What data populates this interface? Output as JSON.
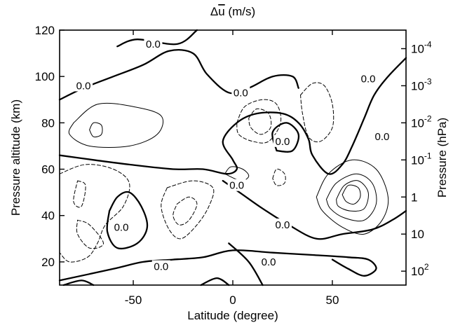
{
  "chart_data": {
    "type": "contour",
    "title": "Δu̅ (m/s)",
    "xlabel": "Latitude (degree)",
    "ylabel": "Pressure altitude (km)",
    "y2label": "Pressure (hPa)",
    "xlim": [
      -87,
      87
    ],
    "ylim": [
      10,
      120
    ],
    "xticks": [
      -50,
      0,
      50
    ],
    "yticks": [
      20,
      40,
      60,
      80,
      100,
      120
    ],
    "y2ticks": [
      {
        "alt": 16,
        "base": "10",
        "exp": "2"
      },
      {
        "alt": 32,
        "base": "10",
        "exp": ""
      },
      {
        "alt": 48,
        "base": "1",
        "exp": ""
      },
      {
        "alt": 64,
        "base": "10",
        "exp": "-1"
      },
      {
        "alt": 80,
        "base": "10",
        "exp": "-2"
      },
      {
        "alt": 96,
        "base": "10",
        "exp": "-3"
      },
      {
        "alt": 112,
        "base": "10",
        "exp": "-4"
      }
    ],
    "zero_label": "0.0",
    "legend": "none",
    "contour_styles": {
      "zero": "thick solid",
      "positive": "thin solid",
      "negative": "dashed"
    },
    "contours": [
      {
        "kind": "zero",
        "points": [
          [
            -87,
            90
          ],
          [
            -75,
            95
          ],
          [
            -60,
            100
          ],
          [
            -45,
            105
          ],
          [
            -32,
            111
          ],
          [
            -20,
            110
          ],
          [
            -13,
            101
          ],
          [
            -2,
            93
          ],
          [
            8,
            95
          ],
          [
            20,
            100
          ],
          [
            30,
            100
          ],
          [
            33,
            95
          ]
        ]
      },
      {
        "kind": "zero",
        "points": [
          [
            -87,
            66
          ],
          [
            -70,
            64
          ],
          [
            -52,
            62
          ],
          [
            -30,
            60
          ],
          [
            -15,
            60
          ],
          [
            -3,
            58
          ],
          [
            2,
            60
          ],
          [
            0,
            64
          ],
          [
            -5,
            72
          ],
          [
            2,
            80
          ],
          [
            12,
            84
          ],
          [
            25,
            84
          ],
          [
            33,
            80
          ],
          [
            38,
            73
          ],
          [
            40,
            66
          ],
          [
            48,
            58
          ],
          [
            55,
            62
          ],
          [
            60,
            70
          ],
          [
            66,
            82
          ],
          [
            71,
            92
          ],
          [
            78,
            100
          ],
          [
            87,
            108
          ]
        ]
      },
      {
        "kind": "zero",
        "points": [
          [
            -58,
            113
          ],
          [
            -48,
            116
          ],
          [
            -28,
            114
          ],
          [
            -18,
            120
          ]
        ]
      },
      {
        "kind": "zero",
        "points": [
          [
            -87,
            12
          ],
          [
            -60,
            17
          ],
          [
            -45,
            20
          ],
          [
            -30,
            21
          ],
          [
            -15,
            22
          ],
          [
            0,
            25
          ],
          [
            20,
            24
          ],
          [
            40,
            23
          ],
          [
            58,
            22
          ],
          [
            68,
            21
          ],
          [
            72,
            17
          ],
          [
            66,
            14
          ],
          [
            58,
            17
          ],
          [
            50,
            21
          ]
        ]
      },
      {
        "kind": "zero",
        "points": [
          [
            -62,
            42
          ],
          [
            -58,
            48
          ],
          [
            -52,
            50
          ],
          [
            -46,
            44
          ],
          [
            -43,
            35
          ],
          [
            -48,
            28
          ],
          [
            -58,
            26
          ],
          [
            -63,
            33
          ],
          [
            -62,
            42
          ]
        ]
      },
      {
        "kind": "zero",
        "points": [
          [
            -5,
            55
          ],
          [
            5,
            49
          ],
          [
            15,
            43
          ],
          [
            28,
            36
          ],
          [
            42,
            30
          ],
          [
            55,
            32
          ],
          [
            70,
            34
          ],
          [
            80,
            38
          ],
          [
            87,
            42
          ]
        ]
      },
      {
        "kind": "zero",
        "points": [
          [
            22,
            68
          ],
          [
            20,
            76
          ],
          [
            27,
            80
          ],
          [
            33,
            75
          ],
          [
            30,
            68
          ],
          [
            22,
            68
          ]
        ]
      },
      {
        "kind": "zero",
        "points": [
          [
            -85,
            10
          ],
          [
            -76,
            12
          ],
          [
            -70,
            10
          ]
        ]
      },
      {
        "kind": "zero",
        "points": [
          [
            -16,
            10
          ],
          [
            -8,
            13
          ],
          [
            -2,
            10
          ]
        ]
      },
      {
        "kind": "zero",
        "points": [
          [
            -2,
            28
          ],
          [
            8,
            20
          ],
          [
            15,
            10
          ]
        ]
      },
      {
        "kind": "positive",
        "points": [
          [
            -80,
            80
          ],
          [
            -68,
            88
          ],
          [
            -50,
            87
          ],
          [
            -36,
            83
          ],
          [
            -38,
            75
          ],
          [
            -52,
            70
          ],
          [
            -72,
            70
          ],
          [
            -82,
            75
          ],
          [
            -80,
            80
          ]
        ]
      },
      {
        "kind": "positive",
        "points": [
          [
            -72,
            77
          ],
          [
            -70,
            80
          ],
          [
            -66,
            79
          ],
          [
            -66,
            75
          ],
          [
            -70,
            74
          ],
          [
            -72,
            77
          ]
        ]
      },
      {
        "kind": "positive",
        "points": [
          [
            -4,
            58
          ],
          [
            -1,
            61
          ],
          [
            5,
            60
          ],
          [
            8,
            57
          ],
          [
            4,
            55
          ],
          [
            -4,
            58
          ]
        ]
      },
      {
        "kind": "positive",
        "points": [
          [
            42,
            48
          ],
          [
            48,
            58
          ],
          [
            60,
            64
          ],
          [
            72,
            60
          ],
          [
            78,
            48
          ],
          [
            75,
            38
          ],
          [
            66,
            32
          ],
          [
            55,
            35
          ],
          [
            45,
            42
          ],
          [
            42,
            48
          ]
        ]
      },
      {
        "kind": "positive",
        "points": [
          [
            47,
            47
          ],
          [
            52,
            54
          ],
          [
            62,
            58
          ],
          [
            70,
            54
          ],
          [
            72,
            45
          ],
          [
            66,
            38
          ],
          [
            56,
            39
          ],
          [
            49,
            43
          ],
          [
            47,
            47
          ]
        ]
      },
      {
        "kind": "positive",
        "points": [
          [
            52,
            47
          ],
          [
            56,
            53
          ],
          [
            63,
            55
          ],
          [
            68,
            50
          ],
          [
            66,
            43
          ],
          [
            59,
            42
          ],
          [
            53,
            44
          ],
          [
            52,
            47
          ]
        ]
      },
      {
        "kind": "positive",
        "points": [
          [
            55,
            49
          ],
          [
            58,
            53
          ],
          [
            63,
            52
          ],
          [
            64,
            48
          ],
          [
            61,
            45
          ],
          [
            57,
            46
          ],
          [
            55,
            49
          ]
        ]
      },
      {
        "kind": "negative",
        "points": [
          [
            -87,
            58
          ],
          [
            -74,
            62
          ],
          [
            -60,
            60
          ],
          [
            -52,
            54
          ],
          [
            -55,
            44
          ],
          [
            -64,
            36
          ],
          [
            -68,
            28
          ],
          [
            -73,
            22
          ],
          [
            -82,
            20
          ],
          [
            -87,
            24
          ]
        ]
      },
      {
        "kind": "negative",
        "points": [
          [
            -78,
            55
          ],
          [
            -74,
            53
          ],
          [
            -76,
            44
          ],
          [
            -80,
            46
          ],
          [
            -78,
            55
          ]
        ]
      },
      {
        "kind": "negative",
        "points": [
          [
            -78,
            38
          ],
          [
            -72,
            36
          ],
          [
            -65,
            28
          ],
          [
            -72,
            26
          ],
          [
            -78,
            32
          ],
          [
            -78,
            38
          ]
        ]
      },
      {
        "kind": "negative",
        "points": [
          [
            -33,
            52
          ],
          [
            -20,
            55
          ],
          [
            -10,
            52
          ],
          [
            -12,
            44
          ],
          [
            -18,
            36
          ],
          [
            -26,
            30
          ],
          [
            -32,
            34
          ],
          [
            -36,
            44
          ],
          [
            -33,
            52
          ]
        ]
      },
      {
        "kind": "negative",
        "points": [
          [
            -28,
            45
          ],
          [
            -22,
            48
          ],
          [
            -18,
            45
          ],
          [
            -22,
            38
          ],
          [
            -27,
            36
          ],
          [
            -30,
            40
          ],
          [
            -28,
            45
          ]
        ]
      },
      {
        "kind": "negative",
        "points": [
          [
            2,
            80
          ],
          [
            6,
            87
          ],
          [
            15,
            90
          ],
          [
            22,
            88
          ],
          [
            24,
            80
          ],
          [
            18,
            72
          ],
          [
            10,
            72
          ],
          [
            3,
            75
          ],
          [
            2,
            80
          ]
        ]
      },
      {
        "kind": "negative",
        "points": [
          [
            8,
            82
          ],
          [
            12,
            86
          ],
          [
            18,
            84
          ],
          [
            19,
            78
          ],
          [
            14,
            75
          ],
          [
            9,
            78
          ],
          [
            8,
            82
          ]
        ]
      },
      {
        "kind": "negative",
        "points": [
          [
            34,
            92
          ],
          [
            40,
            97
          ],
          [
            46,
            96
          ],
          [
            50,
            88
          ],
          [
            50,
            78
          ],
          [
            44,
            72
          ],
          [
            38,
            74
          ],
          [
            35,
            84
          ],
          [
            34,
            92
          ]
        ]
      },
      {
        "kind": "negative",
        "points": [
          [
            20,
            56
          ],
          [
            22,
            60
          ],
          [
            26,
            58
          ],
          [
            26,
            54
          ],
          [
            22,
            53
          ],
          [
            20,
            56
          ]
        ]
      }
    ],
    "zero_labels": [
      {
        "x": -40,
        "y": 114
      },
      {
        "x": -75,
        "y": 96
      },
      {
        "x": 4,
        "y": 93
      },
      {
        "x": 68,
        "y": 99
      },
      {
        "x": 25,
        "y": 72
      },
      {
        "x": 75,
        "y": 74
      },
      {
        "x": 2,
        "y": 53
      },
      {
        "x": 25,
        "y": 36
      },
      {
        "x": -56,
        "y": 35
      },
      {
        "x": -36,
        "y": 18
      },
      {
        "x": 18,
        "y": 20
      }
    ]
  }
}
